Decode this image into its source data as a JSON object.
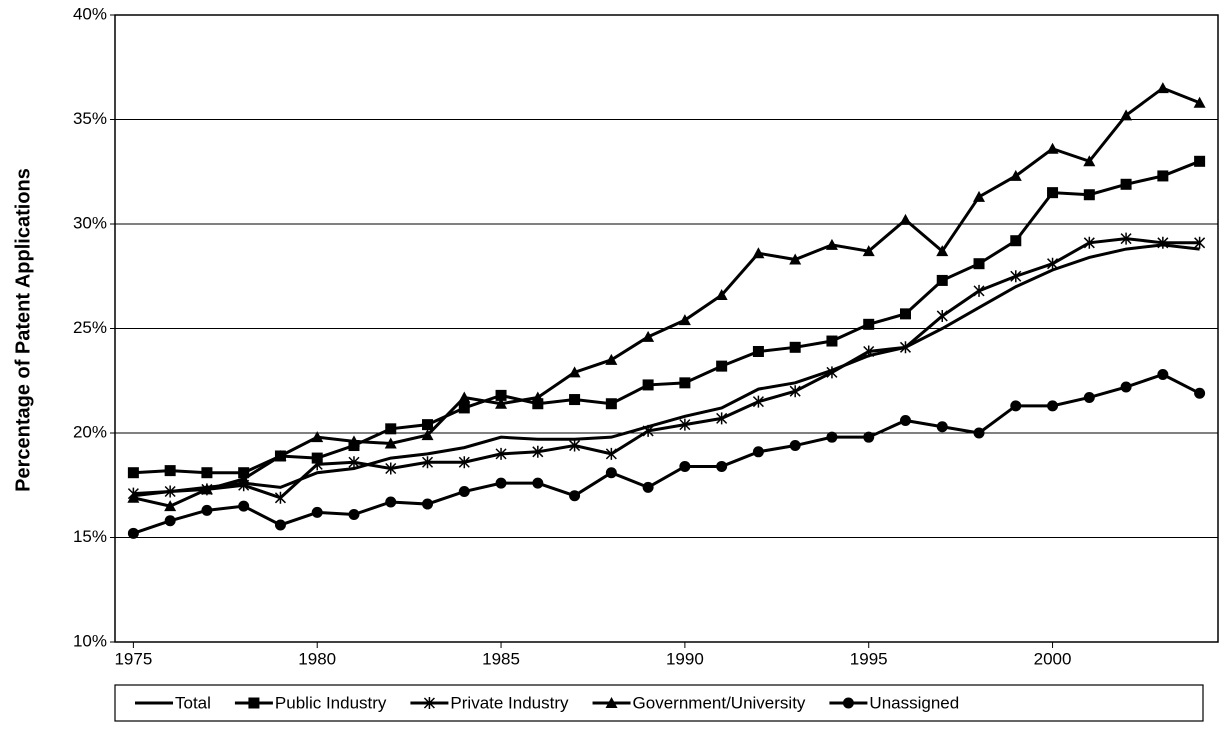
{
  "chart_data": {
    "type": "line",
    "y_label": "Percentage of Patent Applications",
    "x": [
      1975,
      1976,
      1977,
      1978,
      1979,
      1980,
      1981,
      1982,
      1983,
      1984,
      1985,
      1986,
      1987,
      1988,
      1989,
      1990,
      1991,
      1992,
      1993,
      1994,
      1995,
      1996,
      1997,
      1998,
      1999,
      2000,
      2001,
      2002,
      2003,
      2004
    ],
    "xlim": [
      1974.5,
      2004.5
    ],
    "xticks": [
      1975,
      1980,
      1985,
      1990,
      1995,
      2000
    ],
    "ylim": [
      10,
      40
    ],
    "yticks": [
      {
        "value": 10,
        "label": "10%"
      },
      {
        "value": 15,
        "label": "15%"
      },
      {
        "value": 20,
        "label": "20%"
      },
      {
        "value": 25,
        "label": "25%"
      },
      {
        "value": 30,
        "label": "30%"
      },
      {
        "value": 35,
        "label": "35%"
      },
      {
        "value": 40,
        "label": "40%"
      }
    ],
    "grid": true,
    "legend": "bottom",
    "series": [
      {
        "name": "Total",
        "color": "#000000",
        "marker": "none",
        "values": [
          17.0,
          17.2,
          17.4,
          17.6,
          17.4,
          18.1,
          18.3,
          18.8,
          19.0,
          19.3,
          19.8,
          19.7,
          19.7,
          19.8,
          20.3,
          20.8,
          21.2,
          22.1,
          22.4,
          23.0,
          23.7,
          24.1,
          25.0,
          26.0,
          27.0,
          27.8,
          28.4,
          28.8,
          29.0,
          28.8
        ]
      },
      {
        "name": "Public Industry",
        "color": "#000000",
        "marker": "square",
        "values": [
          18.1,
          18.2,
          18.1,
          18.1,
          18.9,
          18.8,
          19.4,
          20.2,
          20.4,
          21.2,
          21.8,
          21.4,
          21.6,
          21.4,
          22.3,
          22.4,
          23.2,
          23.9,
          24.1,
          24.4,
          25.2,
          25.7,
          27.3,
          28.1,
          29.2,
          31.5,
          31.4,
          31.9,
          32.3,
          33.0
        ]
      },
      {
        "name": "Private Industry",
        "color": "#000000",
        "marker": "star",
        "values": [
          17.1,
          17.2,
          17.3,
          17.5,
          16.9,
          18.5,
          18.6,
          18.3,
          18.6,
          18.6,
          19.0,
          19.1,
          19.4,
          19.0,
          20.1,
          20.4,
          20.7,
          21.5,
          22.0,
          22.9,
          23.9,
          24.1,
          25.6,
          26.8,
          27.5,
          28.1,
          29.1,
          29.3,
          29.1,
          29.1
        ]
      },
      {
        "name": "Government/University",
        "color": "#000000",
        "marker": "triangle",
        "values": [
          16.9,
          16.5,
          17.3,
          17.8,
          18.9,
          19.8,
          19.6,
          19.5,
          19.9,
          21.7,
          21.4,
          21.7,
          22.9,
          23.5,
          24.6,
          25.4,
          26.6,
          28.6,
          28.3,
          29.0,
          28.7,
          30.2,
          28.7,
          31.3,
          32.3,
          33.6,
          33.0,
          35.2,
          36.5,
          35.8
        ]
      },
      {
        "name": "Unassigned",
        "color": "#000000",
        "marker": "circle",
        "values": [
          15.2,
          15.8,
          16.3,
          16.5,
          15.6,
          16.2,
          16.1,
          16.7,
          16.6,
          17.2,
          17.6,
          17.6,
          17.0,
          18.1,
          17.4,
          18.4,
          18.4,
          19.1,
          19.4,
          19.8,
          19.8,
          20.6,
          20.3,
          20.0,
          21.3,
          21.3,
          21.7,
          22.2,
          22.8,
          21.9
        ]
      }
    ]
  }
}
